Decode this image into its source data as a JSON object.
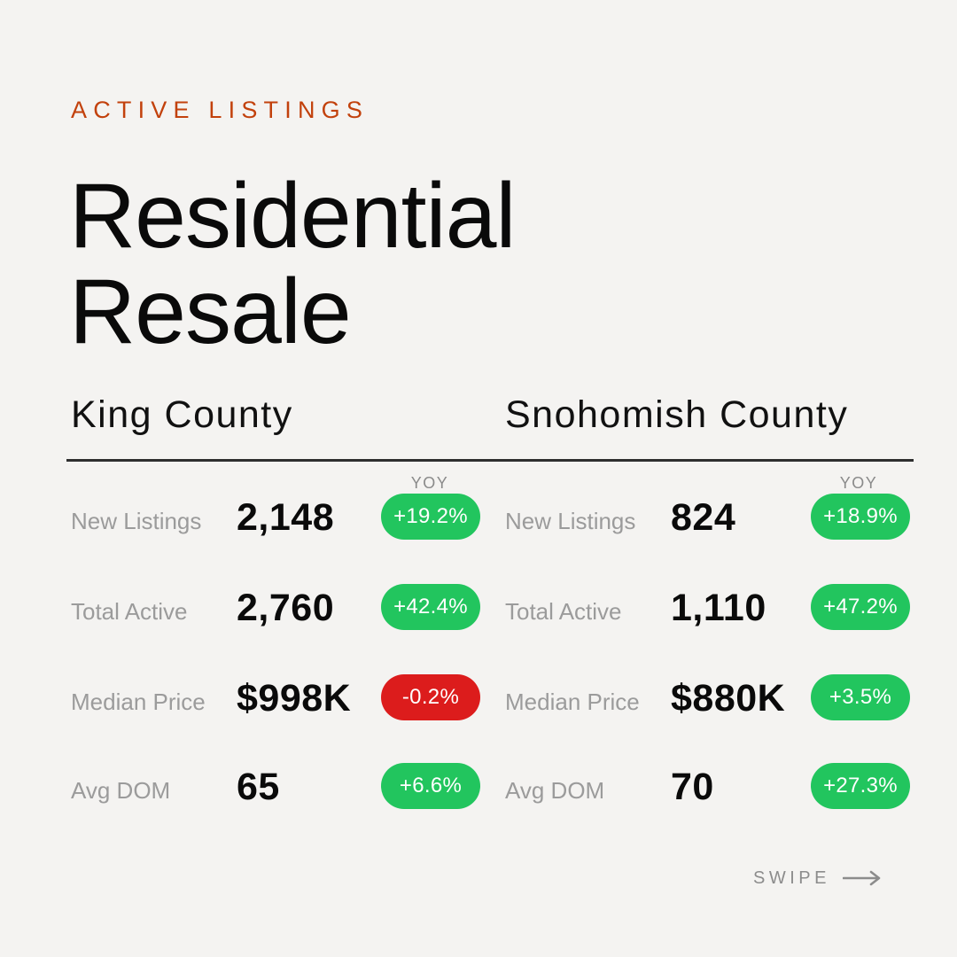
{
  "eyebrow": "ACTIVE LISTINGS",
  "title": {
    "line1": "Residential",
    "line2": "Resale"
  },
  "yoy_label": "YOY",
  "counties": [
    {
      "name": "King County",
      "metrics": [
        {
          "label": "New Listings",
          "value": "2,148",
          "change": "+19.2%",
          "trend": "up"
        },
        {
          "label": "Total Active",
          "value": "2,760",
          "change": "+42.4%",
          "trend": "up"
        },
        {
          "label": "Median Price",
          "value": "$998K",
          "change": "-0.2%",
          "trend": "down"
        },
        {
          "label": "Avg DOM",
          "value": "65",
          "change": "+6.6%",
          "trend": "up"
        }
      ]
    },
    {
      "name": "Snohomish County",
      "metrics": [
        {
          "label": "New Listings",
          "value": "824",
          "change": "+18.9%",
          "trend": "up"
        },
        {
          "label": "Total Active",
          "value": "1,110",
          "change": "+47.2%",
          "trend": "up"
        },
        {
          "label": "Median Price",
          "value": "$880K",
          "change": "+3.5%",
          "trend": "up"
        },
        {
          "label": "Avg DOM",
          "value": "70",
          "change": "+27.3%",
          "trend": "up"
        }
      ]
    }
  ],
  "swipe": {
    "label": "SWIPE",
    "icon": "arrow-right-icon"
  },
  "colors": {
    "background": "#f4f3f1",
    "accent": "#c2410c",
    "positive": "#22c55e",
    "negative": "#dc1c1c"
  }
}
